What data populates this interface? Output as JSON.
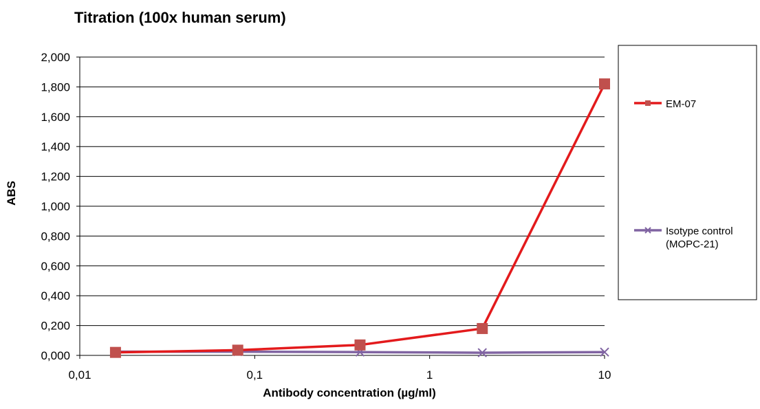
{
  "chart_data": {
    "type": "line",
    "title": "Titration (100x human serum)",
    "xlabel": "Antibody concentration (µg/ml)",
    "ylabel": "ABS",
    "x_scale": "log",
    "xlim": [
      0.01,
      10
    ],
    "ylim": [
      0,
      2.0
    ],
    "x_ticks": [
      0.01,
      0.1,
      1,
      10
    ],
    "x_tick_labels": [
      "0,01",
      "0,1",
      "1",
      "10"
    ],
    "y_ticks": [
      0,
      0.2,
      0.4,
      0.6,
      0.8,
      1.0,
      1.2,
      1.4,
      1.6,
      1.8,
      2.0
    ],
    "y_tick_labels": [
      "0,000",
      "0,200",
      "0,400",
      "0,600",
      "0,800",
      "1,000",
      "1,200",
      "1,400",
      "1,600",
      "1,800",
      "2,000"
    ],
    "grid": "horizontal",
    "legend_position": "right",
    "series": [
      {
        "name": "EM-07",
        "color": "#e31a1c",
        "marker_color": "#c0504d",
        "marker": "square",
        "x": [
          0.016,
          0.08,
          0.4,
          2,
          10
        ],
        "y": [
          0.02,
          0.035,
          0.07,
          0.18,
          1.82
        ]
      },
      {
        "name": "Isotype control (MOPC-21)",
        "legend_lines": [
          "Isotype control",
          "(MOPC-21)"
        ],
        "color": "#8064a2",
        "marker_color": "#8064a2",
        "marker": "x",
        "x": [
          0.016,
          0.08,
          0.4,
          2,
          10
        ],
        "y": [
          0.025,
          0.025,
          0.022,
          0.018,
          0.022
        ]
      }
    ]
  }
}
